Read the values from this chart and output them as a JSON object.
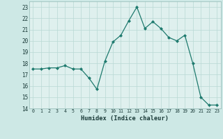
{
  "x": [
    0,
    1,
    2,
    3,
    4,
    5,
    6,
    7,
    8,
    9,
    10,
    11,
    12,
    13,
    14,
    15,
    16,
    17,
    18,
    19,
    20,
    21,
    22,
    23
  ],
  "y": [
    17.5,
    17.5,
    17.6,
    17.6,
    17.8,
    17.5,
    17.5,
    16.7,
    15.7,
    18.2,
    19.9,
    20.5,
    21.8,
    23.0,
    21.1,
    21.7,
    21.1,
    20.3,
    20.0,
    20.5,
    18.0,
    15.0,
    14.3,
    14.3
  ],
  "xlabel": "Humidex (Indice chaleur)",
  "xlim": [
    -0.5,
    23.5
  ],
  "ylim": [
    14,
    23.5
  ],
  "yticks": [
    14,
    15,
    16,
    17,
    18,
    19,
    20,
    21,
    22,
    23
  ],
  "xticks": [
    0,
    1,
    2,
    3,
    4,
    5,
    6,
    7,
    8,
    9,
    10,
    11,
    12,
    13,
    14,
    15,
    16,
    17,
    18,
    19,
    20,
    21,
    22,
    23
  ],
  "line_color": "#1e7a6e",
  "marker": "D",
  "marker_size": 2.0,
  "bg_color": "#cde8e5",
  "grid_color": "#b8d8d4",
  "axes_bg": "#dff0ee"
}
